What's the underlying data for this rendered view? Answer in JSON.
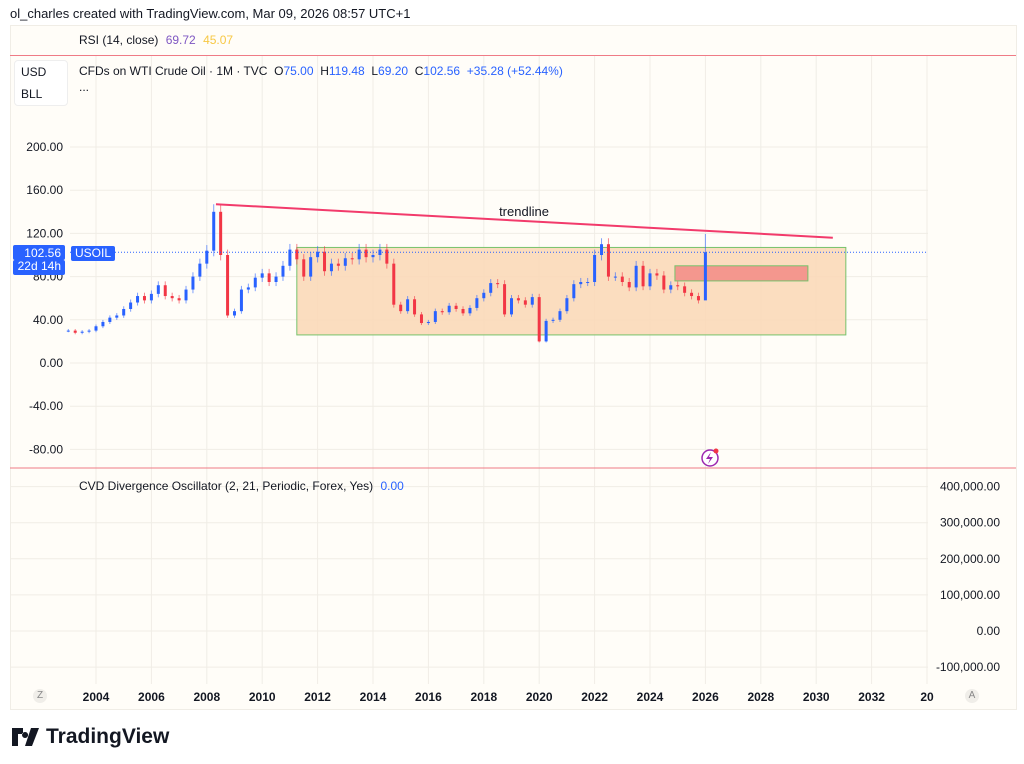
{
  "credit": "ol_charles created with TradingView.com, Mar 09, 2026 08:57 UTC+1",
  "rsi": {
    "label": "RSI (14, close)",
    "value1": "69.72",
    "value2": "45.07",
    "color1": "#7e57c2",
    "color2": "#f7c844"
  },
  "currency": {
    "unit": "USD",
    "sub": "BLL"
  },
  "legend": {
    "symbol": "CFDs on WTI Crude Oil · 1M · TVC",
    "o_label": "O",
    "o": "75.00",
    "h_label": "H",
    "h": "119.48",
    "l_label": "L",
    "l": "69.20",
    "c_label": "C",
    "c": "102.56",
    "change": "+35.28 (+52.44%)",
    "more": "..."
  },
  "price_tag": {
    "price": "102.56",
    "countdown": "22d 14h",
    "ticker": "USOIL"
  },
  "cvd": {
    "label": "CVD Divergence Oscillator (2, 21, Periodic, Forex, Yes)",
    "value": "0.00"
  },
  "bottom_buttons": {
    "left": "Z",
    "right": "A"
  },
  "brand": "TradingView",
  "chart_data": {
    "type": "candlestick",
    "title": "",
    "price_ticks": [
      "200.00",
      "160.00",
      "120.00",
      "80.00",
      "40.00",
      "0.00",
      "-40.00",
      "-80.00"
    ],
    "price_tick_values": [
      200,
      160,
      120,
      80,
      40,
      0,
      -40,
      -80
    ],
    "cvd_ticks": [
      "400,000.00",
      "300,000.00",
      "200,000.00",
      "100,000.00",
      "0.00",
      "-100,000.00"
    ],
    "year_ticks": [
      "2004",
      "2006",
      "2008",
      "2010",
      "2012",
      "2014",
      "2016",
      "2018",
      "2020",
      "2022",
      "2024",
      "2026",
      "2028",
      "2030",
      "2032",
      "20"
    ],
    "colors": {
      "up": "#2962ff",
      "down": "#f23645",
      "trendline": "#f23a6b",
      "range_box": "#fad7b5",
      "zone_box": "#f4978e",
      "box_border": "#76c26b"
    },
    "start_year": 2003.0,
    "step_years": 0.25,
    "closes": [
      30,
      28,
      29,
      30,
      34,
      38,
      42,
      44,
      50,
      56,
      62,
      58,
      64,
      72,
      62,
      60,
      58,
      68,
      80,
      92,
      104,
      140,
      100,
      44,
      48,
      68,
      70,
      79,
      83,
      75,
      80,
      90,
      105,
      96,
      80,
      98,
      103,
      85,
      92,
      90,
      97,
      96,
      105,
      98,
      100,
      105,
      92,
      54,
      48,
      59,
      45,
      37,
      38,
      48,
      47,
      53,
      50,
      46,
      51,
      60,
      65,
      74,
      73,
      45,
      60,
      58,
      54,
      61,
      20,
      39,
      40,
      48,
      60,
      73,
      75,
      75,
      100,
      110,
      80,
      80,
      75,
      70,
      90,
      71,
      83,
      81,
      68,
      72,
      71,
      65,
      62,
      58,
      102.56
    ],
    "last_high": 119.48,
    "current_price": 102.56,
    "annotations": [
      {
        "type": "trendline",
        "text": "trendline",
        "from": [
          2008.33,
          147
        ],
        "to": [
          2030.6,
          116
        ]
      },
      {
        "type": "rectangle",
        "name": "range",
        "x": [
          2011.25,
          2031.07
        ],
        "y": [
          26,
          107
        ]
      },
      {
        "type": "rectangle",
        "name": "zone",
        "x": [
          2024.9,
          2029.7
        ],
        "y": [
          76,
          90
        ]
      }
    ]
  }
}
